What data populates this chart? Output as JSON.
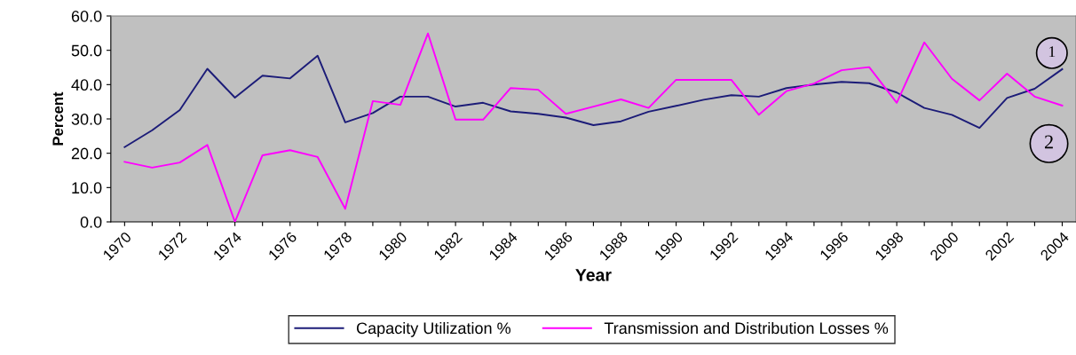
{
  "chart_data": {
    "type": "line",
    "xlabel": "Year",
    "ylabel": "Percent",
    "categories": [
      "1970",
      null,
      "1972",
      null,
      "1974",
      null,
      "1976",
      null,
      "1978",
      null,
      "1980",
      null,
      "1982",
      null,
      "1984",
      null,
      "1986",
      null,
      "1988",
      null,
      "1990",
      null,
      "1992",
      null,
      "1994",
      null,
      "1996",
      null,
      "1998",
      null,
      "2000",
      null,
      "2002",
      null,
      "2004"
    ],
    "series": [
      {
        "name": "Capacity Utilization %",
        "color": "#1c1c78",
        "values": [
          21.8,
          26.7,
          32.6,
          44.6,
          36.2,
          42.6,
          41.8,
          48.4,
          29.0,
          31.7,
          36.5,
          36.5,
          33.6,
          34.7,
          32.2,
          31.5,
          30.4,
          28.2,
          29.3,
          32.1,
          33.8,
          35.6,
          36.9,
          36.5,
          39.0,
          40.0,
          40.8,
          40.4,
          37.7,
          33.2,
          31.2,
          27.4,
          36.1,
          38.8,
          44.5
        ]
      },
      {
        "name": "Transmission and Distribution Losses %",
        "color": "#ff00ff",
        "values": [
          17.5,
          15.8,
          17.3,
          22.4,
          0.0,
          19.4,
          20.9,
          18.9,
          3.8,
          35.2,
          34.1,
          54.9,
          29.8,
          29.8,
          39.0,
          38.5,
          31.5,
          33.6,
          35.7,
          33.2,
          41.4,
          41.4,
          41.4,
          31.2,
          38.1,
          40.3,
          44.2,
          45.1,
          34.7,
          52.3,
          41.7,
          35.4,
          43.2,
          36.5,
          33.9
        ]
      }
    ],
    "ylim": [
      0,
      60
    ],
    "yticks": [
      {
        "value": 0,
        "label": "0.0"
      },
      {
        "value": 10,
        "label": "10.0"
      },
      {
        "value": 20,
        "label": "20.0"
      },
      {
        "value": 30,
        "label": "30.0"
      },
      {
        "value": 40,
        "label": "40.0"
      },
      {
        "value": 50,
        "label": "50.0"
      },
      {
        "value": 60,
        "label": "60.0"
      }
    ],
    "annotations": [
      "1",
      "2"
    ],
    "grid": false,
    "legend": "bottom",
    "marker": "none",
    "line_style": "solid"
  }
}
